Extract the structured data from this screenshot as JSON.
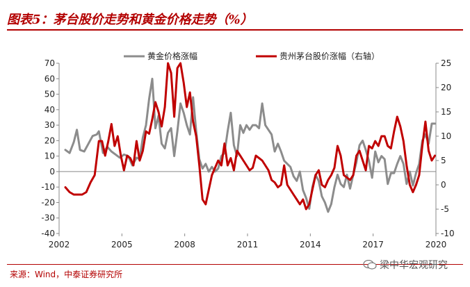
{
  "header": {
    "title": "图表5：茅台股价走势和黄金价格走势（%）"
  },
  "footer": {
    "source": "来源：Wind，中泰证券研究所",
    "watermark": "梁中华宏观研究"
  },
  "colors": {
    "accent": "#b30000",
    "gold_series": "#8c8c8c",
    "maotai_series": "#c00000"
  },
  "chart_data": {
    "type": "line",
    "x_ticks": [
      "2002",
      "2005",
      "2008",
      "2011",
      "2014",
      "2017",
      "2020"
    ],
    "xlim": [
      2002,
      2020
    ],
    "left_axis": {
      "ticks": [
        "70",
        "60",
        "50",
        "40",
        "30",
        "20",
        "10",
        "0",
        "-10",
        "-20",
        "-30",
        "-40"
      ],
      "ylim": [
        -40,
        70
      ]
    },
    "right_axis": {
      "ticks": [
        "25",
        "20",
        "15",
        "10",
        "5",
        "0",
        "-5",
        "-10"
      ],
      "ylim": [
        -100,
        250
      ]
    },
    "grid": false,
    "legend_position": "top",
    "series": [
      {
        "name": "黄金价格涨幅",
        "axis": "left",
        "x": [
          2002.3,
          2002.5,
          2002.7,
          2002.85,
          2003.0,
          2003.2,
          2003.4,
          2003.6,
          2003.8,
          2003.9,
          2004.1,
          2004.3,
          2004.5,
          2004.7,
          2004.9,
          2005.1,
          2005.3,
          2005.5,
          2005.7,
          2005.85,
          2006.0,
          2006.15,
          2006.3,
          2006.45,
          2006.6,
          2006.75,
          2006.9,
          2007.05,
          2007.2,
          2007.35,
          2007.5,
          2007.65,
          2007.8,
          2007.95,
          2008.1,
          2008.25,
          2008.4,
          2008.55,
          2008.7,
          2008.85,
          2009.0,
          2009.15,
          2009.3,
          2009.45,
          2009.6,
          2009.75,
          2009.9,
          2010.05,
          2010.2,
          2010.35,
          2010.5,
          2010.65,
          2010.8,
          2010.95,
          2011.1,
          2011.25,
          2011.4,
          2011.55,
          2011.7,
          2011.85,
          2012.0,
          2012.15,
          2012.3,
          2012.45,
          2012.6,
          2012.75,
          2012.9,
          2013.05,
          2013.2,
          2013.35,
          2013.5,
          2013.65,
          2013.8,
          2013.95,
          2014.1,
          2014.25,
          2014.4,
          2014.55,
          2014.7,
          2014.85,
          2015.0,
          2015.15,
          2015.3,
          2015.45,
          2015.6,
          2015.75,
          2015.9,
          2016.05,
          2016.2,
          2016.35,
          2016.5,
          2016.65,
          2016.8,
          2016.95,
          2017.1,
          2017.25,
          2017.4,
          2017.55,
          2017.7,
          2017.85,
          2018.0,
          2018.15,
          2018.3,
          2018.45,
          2018.6,
          2018.75,
          2018.9,
          2019.05,
          2019.2,
          2019.35,
          2019.5,
          2019.65,
          2019.8,
          2019.95
        ],
        "values": [
          14,
          12,
          19,
          27,
          14,
          13,
          18,
          23,
          24,
          26,
          12,
          16,
          13,
          11,
          9,
          11,
          10,
          4,
          9,
          8,
          22,
          30,
          47,
          60,
          28,
          36,
          18,
          15,
          25,
          28,
          10,
          26,
          44,
          38,
          30,
          24,
          48,
          26,
          8,
          2,
          5,
          0,
          3,
          0,
          2,
          10,
          12,
          26,
          38,
          17,
          10,
          30,
          25,
          30,
          27,
          30,
          30,
          28,
          44,
          30,
          27,
          24,
          13,
          18,
          13,
          7,
          5,
          3,
          -3,
          -6,
          0,
          -12,
          -17,
          -24,
          -10,
          -2,
          -6,
          -16,
          -20,
          -26,
          -21,
          -10,
          -2,
          -8,
          -10,
          -2,
          -11,
          -2,
          6,
          17,
          20,
          14,
          7,
          -4,
          13,
          6,
          10,
          8,
          -8,
          -1,
          -1,
          5,
          10,
          5,
          -8,
          0,
          -9,
          -1,
          5,
          20,
          24,
          18,
          31,
          31
        ]
      },
      {
        "name": "贵州茅台股价涨幅（右轴）",
        "axis": "right",
        "x": [
          2002.3,
          2002.5,
          2002.7,
          2002.9,
          2003.1,
          2003.3,
          2003.5,
          2003.7,
          2003.9,
          2004.05,
          2004.2,
          2004.35,
          2004.5,
          2004.65,
          2004.8,
          2004.95,
          2005.1,
          2005.25,
          2005.4,
          2005.55,
          2005.7,
          2005.85,
          2006.0,
          2006.15,
          2006.3,
          2006.45,
          2006.6,
          2006.75,
          2006.9,
          2007.05,
          2007.2,
          2007.35,
          2007.5,
          2007.65,
          2007.8,
          2007.95,
          2008.1,
          2008.25,
          2008.4,
          2008.55,
          2008.7,
          2008.85,
          2009.0,
          2009.15,
          2009.3,
          2009.45,
          2009.6,
          2009.75,
          2009.9,
          2010.05,
          2010.2,
          2010.35,
          2010.5,
          2010.65,
          2010.8,
          2010.95,
          2011.1,
          2011.25,
          2011.4,
          2011.55,
          2011.7,
          2011.85,
          2012.0,
          2012.15,
          2012.3,
          2012.45,
          2012.6,
          2012.75,
          2012.9,
          2013.05,
          2013.2,
          2013.35,
          2013.5,
          2013.65,
          2013.8,
          2013.95,
          2014.1,
          2014.25,
          2014.4,
          2014.55,
          2014.7,
          2014.85,
          2015.0,
          2015.15,
          2015.3,
          2015.45,
          2015.6,
          2015.75,
          2015.9,
          2016.05,
          2016.2,
          2016.35,
          2016.5,
          2016.65,
          2016.8,
          2016.95,
          2017.1,
          2017.25,
          2017.4,
          2017.55,
          2017.7,
          2017.85,
          2018.0,
          2018.15,
          2018.3,
          2018.45,
          2018.6,
          2018.75,
          2018.9,
          2019.05,
          2019.2,
          2019.35,
          2019.5,
          2019.65,
          2019.8,
          2019.95
        ],
        "values": [
          -5,
          -15,
          -20,
          -20,
          -20,
          -15,
          5,
          20,
          90,
          90,
          60,
          90,
          125,
          80,
          100,
          60,
          30,
          60,
          55,
          40,
          90,
          50,
          70,
          110,
          105,
          135,
          170,
          150,
          120,
          160,
          250,
          230,
          140,
          240,
          250,
          210,
          160,
          190,
          130,
          100,
          40,
          -30,
          -40,
          -10,
          20,
          35,
          50,
          40,
          85,
          40,
          55,
          30,
          70,
          60,
          50,
          40,
          30,
          35,
          60,
          55,
          50,
          40,
          30,
          10,
          5,
          -5,
          0,
          40,
          0,
          -10,
          -20,
          -30,
          -40,
          -30,
          -50,
          -40,
          -10,
          20,
          30,
          0,
          -5,
          10,
          20,
          35,
          80,
          60,
          20,
          15,
          10,
          20,
          60,
          70,
          50,
          30,
          80,
          75,
          90,
          80,
          100,
          100,
          80,
          75,
          110,
          140,
          120,
          90,
          40,
          0,
          -15,
          0,
          20,
          80,
          130,
          70,
          50,
          60
        ]
      }
    ]
  }
}
